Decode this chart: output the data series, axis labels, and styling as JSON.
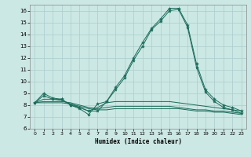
{
  "title": "",
  "xlabel": "Humidex (Indice chaleur)",
  "xlim": [
    -0.5,
    23.5
  ],
  "ylim": [
    6,
    16.5
  ],
  "yticks": [
    6,
    7,
    8,
    9,
    10,
    11,
    12,
    13,
    14,
    15,
    16
  ],
  "xticks": [
    0,
    1,
    2,
    3,
    4,
    5,
    6,
    7,
    8,
    9,
    10,
    11,
    12,
    13,
    14,
    15,
    16,
    17,
    18,
    19,
    20,
    21,
    22,
    23
  ],
  "bg_color": "#cce8e4",
  "grid_color": "#aacccc",
  "line_color": "#1a6b5a",
  "line1": [
    8.2,
    9.0,
    8.6,
    8.5,
    8.0,
    7.8,
    7.5,
    7.5,
    8.3,
    9.5,
    10.5,
    12.0,
    13.3,
    14.5,
    15.3,
    16.2,
    16.2,
    14.8,
    11.5,
    9.3,
    8.5,
    8.0,
    7.8,
    7.5
  ],
  "line2": [
    8.2,
    8.8,
    8.5,
    8.5,
    8.0,
    7.7,
    7.2,
    8.1,
    8.3,
    9.3,
    10.3,
    11.8,
    13.0,
    14.4,
    15.1,
    16.0,
    16.1,
    14.6,
    11.2,
    9.1,
    8.3,
    7.8,
    7.6,
    7.3
  ],
  "line3": [
    8.2,
    8.5,
    8.5,
    8.4,
    8.1,
    7.8,
    7.5,
    7.8,
    8.2,
    8.3,
    8.3,
    8.3,
    8.3,
    8.3,
    8.3,
    8.3,
    8.2,
    8.1,
    8.0,
    7.9,
    7.8,
    7.7,
    7.6,
    7.5
  ],
  "line4": [
    8.2,
    8.3,
    8.3,
    8.3,
    8.2,
    8.0,
    7.8,
    7.7,
    7.8,
    7.9,
    7.9,
    7.9,
    7.9,
    7.9,
    7.9,
    7.9,
    7.8,
    7.7,
    7.6,
    7.6,
    7.5,
    7.5,
    7.4,
    7.3
  ],
  "line5": [
    8.2,
    8.2,
    8.2,
    8.2,
    8.1,
    7.9,
    7.7,
    7.6,
    7.6,
    7.7,
    7.7,
    7.7,
    7.7,
    7.7,
    7.7,
    7.7,
    7.7,
    7.6,
    7.5,
    7.5,
    7.4,
    7.4,
    7.3,
    7.2
  ]
}
